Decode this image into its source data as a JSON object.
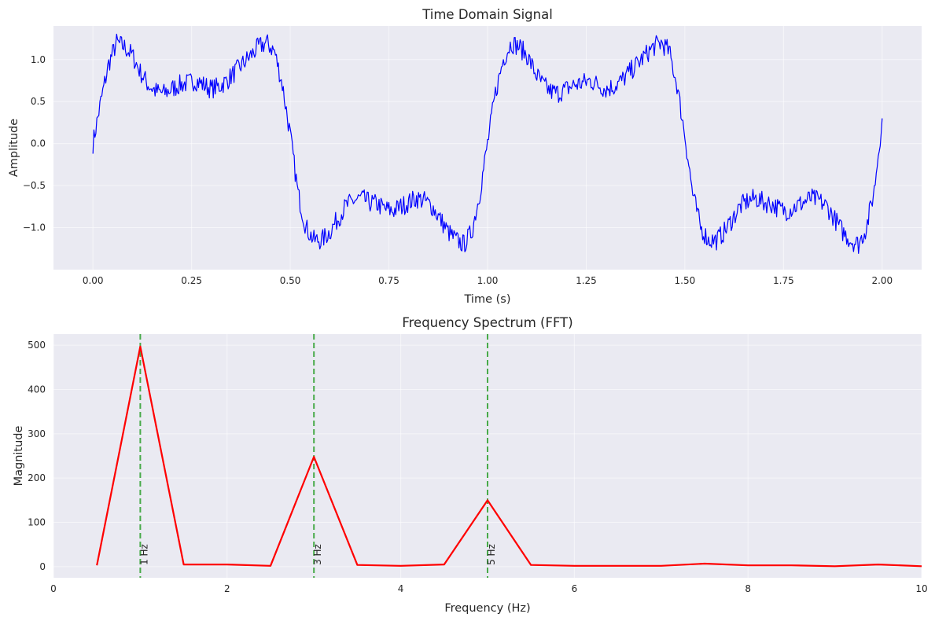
{
  "chart_data": [
    {
      "type": "line",
      "title": "Time Domain Signal",
      "xlabel": "Time (s)",
      "ylabel": "Amplitude",
      "xlim": [
        -0.1,
        2.1
      ],
      "ylim": [
        -1.5,
        1.4
      ],
      "xticks": [
        0.0,
        0.25,
        0.5,
        0.75,
        1.0,
        1.25,
        1.5,
        1.75,
        2.0
      ],
      "xtick_labels": [
        "0.00",
        "0.25",
        "0.50",
        "0.75",
        "1.00",
        "1.25",
        "1.50",
        "1.75",
        "2.00"
      ],
      "yticks": [
        -1.0,
        -0.5,
        0.0,
        0.5,
        1.0
      ],
      "ytick_labels": [
        "−1.0",
        "−0.5",
        "0.0",
        "0.5",
        "1.0"
      ],
      "grid": true,
      "series": [
        {
          "color": "#0000ff",
          "x": [
            0.0,
            0.02,
            0.04,
            0.06,
            0.08,
            0.1,
            0.12,
            0.14,
            0.16,
            0.18,
            0.2,
            0.22,
            0.24,
            0.26,
            0.28,
            0.3,
            0.32,
            0.34,
            0.36,
            0.38,
            0.4,
            0.42,
            0.44,
            0.46,
            0.48,
            0.5,
            0.52,
            0.54,
            0.56,
            0.58,
            0.6,
            0.62,
            0.64,
            0.66,
            0.68,
            0.7,
            0.72,
            0.74,
            0.76,
            0.78,
            0.8,
            0.82,
            0.84,
            0.86,
            0.88,
            0.9,
            0.92,
            0.94,
            0.96,
            0.98,
            1.0,
            1.02,
            1.04,
            1.06,
            1.08,
            1.1,
            1.12,
            1.14,
            1.16,
            1.18,
            1.2,
            1.22,
            1.24,
            1.26,
            1.28,
            1.3,
            1.32,
            1.34,
            1.36,
            1.38,
            1.4,
            1.42,
            1.44,
            1.46,
            1.48,
            1.5,
            1.52,
            1.54,
            1.56,
            1.58,
            1.6,
            1.62,
            1.64,
            1.66,
            1.68,
            1.7,
            1.72,
            1.74,
            1.76,
            1.78,
            1.8,
            1.82,
            1.84,
            1.86,
            1.88,
            1.9,
            1.92,
            1.94,
            1.96,
            1.98,
            2.0
          ],
          "y": [
            0.0,
            0.5,
            0.95,
            1.2,
            1.15,
            1.05,
            0.85,
            0.7,
            0.62,
            0.6,
            0.65,
            0.7,
            0.72,
            0.75,
            0.7,
            0.65,
            0.68,
            0.75,
            0.85,
            0.95,
            1.05,
            1.15,
            1.2,
            1.1,
            0.7,
            0.1,
            -0.6,
            -1.0,
            -1.15,
            -1.15,
            -1.05,
            -0.9,
            -0.75,
            -0.68,
            -0.65,
            -0.7,
            -0.72,
            -0.78,
            -0.8,
            -0.75,
            -0.7,
            -0.65,
            -0.68,
            -0.75,
            -0.9,
            -1.05,
            -1.15,
            -1.2,
            -1.05,
            -0.6,
            0.0,
            0.6,
            1.0,
            1.2,
            1.15,
            1.05,
            0.85,
            0.7,
            0.62,
            0.6,
            0.65,
            0.7,
            0.72,
            0.75,
            0.7,
            0.65,
            0.68,
            0.75,
            0.85,
            0.95,
            1.05,
            1.15,
            1.2,
            1.1,
            0.7,
            0.1,
            -0.6,
            -1.0,
            -1.15,
            -1.15,
            -1.05,
            -0.9,
            -0.75,
            -0.68,
            -0.65,
            -0.7,
            -0.72,
            -0.78,
            -0.8,
            -0.75,
            -0.7,
            -0.65,
            -0.68,
            -0.75,
            -0.9,
            -1.05,
            -1.15,
            -1.2,
            -1.0,
            -0.55,
            0.3
          ]
        }
      ]
    },
    {
      "type": "line",
      "title": "Frequency Spectrum (FFT)",
      "xlabel": "Frequency (Hz)",
      "ylabel": "Magnitude",
      "xlim": [
        0,
        10
      ],
      "ylim": [
        -25,
        525
      ],
      "xticks": [
        0,
        2,
        4,
        6,
        8,
        10
      ],
      "xtick_labels": [
        "0",
        "2",
        "4",
        "6",
        "8",
        "10"
      ],
      "yticks": [
        0,
        100,
        200,
        300,
        400,
        500
      ],
      "ytick_labels": [
        "0",
        "100",
        "200",
        "300",
        "400",
        "500"
      ],
      "grid": true,
      "series": [
        {
          "color": "#ff0000",
          "x": [
            0.5,
            1.0,
            1.5,
            2.0,
            2.5,
            3.0,
            3.5,
            4.0,
            4.5,
            5.0,
            5.5,
            6.0,
            6.5,
            7.0,
            7.5,
            8.0,
            8.5,
            9.0,
            9.5,
            10.0
          ],
          "y": [
            3,
            497,
            5,
            5,
            2,
            248,
            4,
            2,
            5,
            150,
            4,
            2,
            2,
            2,
            7,
            3,
            3,
            1,
            5,
            1
          ]
        }
      ],
      "vlines": [
        {
          "x": 1,
          "label": "1 Hz",
          "color": "#2ca02c"
        },
        {
          "x": 3,
          "label": "3 Hz",
          "color": "#2ca02c"
        },
        {
          "x": 5,
          "label": "5 Hz",
          "color": "#2ca02c"
        }
      ]
    }
  ]
}
